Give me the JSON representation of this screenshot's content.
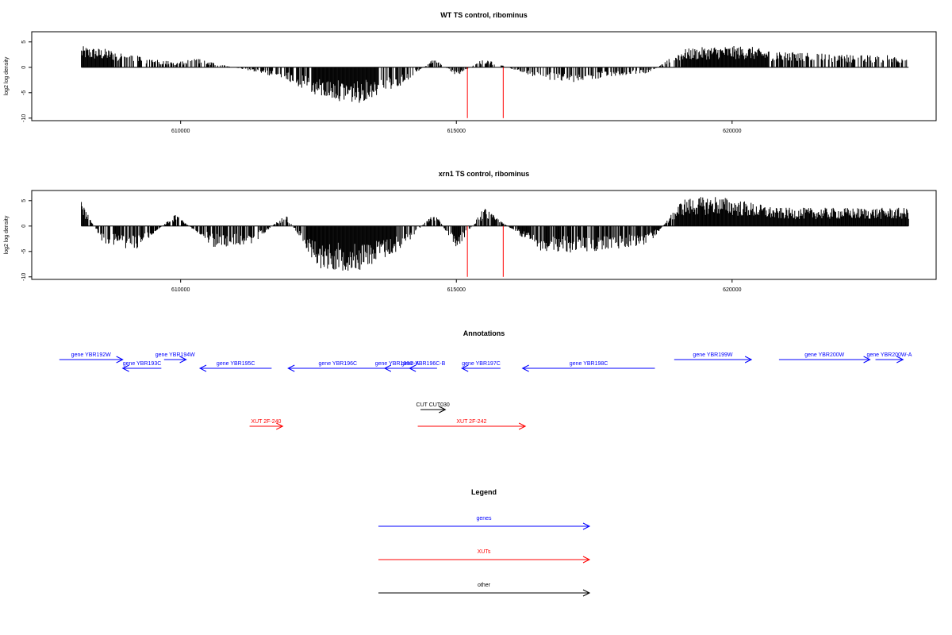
{
  "chart_data": [
    {
      "type": "bar",
      "title": "WT TS control, ribominus",
      "ylabel": "log2 log density",
      "xlim": [
        607300,
        623700
      ],
      "ylim": [
        -10.5,
        7
      ],
      "x_ticks": [
        610000,
        615000,
        620000
      ],
      "x_tick_labels": [
        "610000",
        "615000",
        "620000"
      ],
      "y_ticks": [
        -10,
        -5,
        0,
        5
      ],
      "y_tick_labels": [
        "-10",
        "-5",
        "0",
        "5"
      ],
      "baseline": {
        "from": 608200,
        "to": 623200,
        "value": 0
      },
      "series": [
        {
          "values": [
            [
              608200,
              3.5
            ],
            [
              608700,
              3
            ],
            [
              609200,
              2
            ],
            [
              609900,
              0.8
            ],
            [
              610300,
              1.5
            ],
            [
              611900,
              -2
            ],
            [
              612500,
              -5
            ],
            [
              613200,
              -6
            ],
            [
              614000,
              -3
            ],
            [
              614600,
              1.5
            ],
            [
              615000,
              -1.5
            ],
            [
              615500,
              1.5
            ],
            [
              616500,
              -2
            ],
            [
              617200,
              -2.5
            ],
            [
              617800,
              -1.5
            ],
            [
              618500,
              -1
            ],
            [
              619100,
              3
            ],
            [
              619700,
              3.5
            ],
            [
              620300,
              3.5
            ],
            [
              620800,
              2.5
            ],
            [
              621500,
              2.5
            ],
            [
              622300,
              2
            ]
          ]
        },
        {
          "name": "",
          "color": "#ff0000",
          "values": [
            [
              615200,
              -10
            ],
            [
              615850,
              -10
            ]
          ]
        }
      ]
    },
    {
      "type": "bar",
      "title": "xrn1 TS control, ribominus",
      "ylabel": "log2 log density",
      "xlim": [
        607300,
        623700
      ],
      "ylim": [
        -10.5,
        7
      ],
      "x_ticks": [
        610000,
        615000,
        620000
      ],
      "x_tick_labels": [
        "610000",
        "615000",
        "620000"
      ],
      "y_ticks": [
        -10,
        -5,
        0,
        5
      ],
      "y_tick_labels": [
        "-10",
        "-5",
        "0",
        "5"
      ],
      "baseline": {
        "from": 608200,
        "to": 623200,
        "value": 0
      },
      "series": [
        {
          "values": [
            [
              608200,
              4
            ],
            [
              608600,
              -3
            ],
            [
              609200,
              -4
            ],
            [
              609900,
              2
            ],
            [
              610600,
              -3.5
            ],
            [
              611300,
              -3
            ],
            [
              611900,
              2
            ],
            [
              612500,
              -7
            ],
            [
              613200,
              -7.5
            ],
            [
              614000,
              -4
            ],
            [
              614600,
              2.5
            ],
            [
              615000,
              -4
            ],
            [
              615500,
              3
            ],
            [
              616500,
              -4
            ],
            [
              617200,
              -4.5
            ],
            [
              617800,
              -4
            ],
            [
              618500,
              -3
            ],
            [
              619100,
              4.5
            ],
            [
              619700,
              5
            ],
            [
              620300,
              4
            ],
            [
              620800,
              3
            ],
            [
              621500,
              3
            ],
            [
              622300,
              3
            ]
          ]
        },
        {
          "name": "",
          "color": "#ff0000",
          "values": [
            [
              615200,
              -10
            ],
            [
              615850,
              -10
            ]
          ]
        }
      ]
    }
  ],
  "annotations": {
    "title": "Annotations",
    "colors": {
      "genes": "#0000ff",
      "XUTs": "#ff0000",
      "other": "#000000"
    },
    "features": [
      {
        "label": "gene YBR192W",
        "start": 607800,
        "end": 608950,
        "strand": "+",
        "row": 1,
        "kind": "genes"
      },
      {
        "label": "gene YBR193C",
        "start": 608950,
        "end": 609650,
        "strand": "-",
        "row": 2,
        "kind": "genes"
      },
      {
        "label": "gene YBR194W",
        "start": 609700,
        "end": 610100,
        "strand": "+",
        "row": 1,
        "kind": "genes"
      },
      {
        "label": "gene YBR195C",
        "start": 610350,
        "end": 611650,
        "strand": "-",
        "row": 2,
        "kind": "genes"
      },
      {
        "label": "gene YBR196C",
        "start": 611950,
        "end": 613750,
        "strand": "-",
        "row": 2,
        "kind": "genes"
      },
      {
        "label": "gene YBR196C-A",
        "start": 613700,
        "end": 614150,
        "strand": "-",
        "row": 2,
        "kind": "genes"
      },
      {
        "label": "gene YBR196C-B",
        "start": 614150,
        "end": 614650,
        "strand": "-",
        "row": 2,
        "kind": "genes"
      },
      {
        "label": "gene YBR197C",
        "start": 615100,
        "end": 615800,
        "strand": "-",
        "row": 2,
        "kind": "genes"
      },
      {
        "label": "gene YBR198C",
        "start": 616200,
        "end": 618600,
        "strand": "-",
        "row": 2,
        "kind": "genes"
      },
      {
        "label": "gene YBR199W",
        "start": 618950,
        "end": 620350,
        "strand": "+",
        "row": 1,
        "kind": "genes"
      },
      {
        "label": "gene YBR200W",
        "start": 620850,
        "end": 622500,
        "strand": "+",
        "row": 1,
        "kind": "genes"
      },
      {
        "label": "gene YBR200W-A",
        "start": 622600,
        "end": 623100,
        "strand": "+",
        "row": 1,
        "kind": "genes"
      },
      {
        "label": "CUT CUT030",
        "start": 614350,
        "end": 614800,
        "strand": "+",
        "row": 3,
        "kind": "other"
      },
      {
        "label": "XUT 2F-240",
        "start": 611250,
        "end": 611850,
        "strand": "+",
        "row": 4,
        "kind": "XUTs"
      },
      {
        "label": "XUT 2F-242",
        "start": 614300,
        "end": 616250,
        "strand": "+",
        "row": 4,
        "kind": "XUTs"
      }
    ]
  },
  "legend": {
    "title": "Legend",
    "items": [
      {
        "label": "genes",
        "color": "#0000ff"
      },
      {
        "label": "XUTs",
        "color": "#ff0000"
      },
      {
        "label": "other",
        "color": "#000000"
      }
    ]
  }
}
